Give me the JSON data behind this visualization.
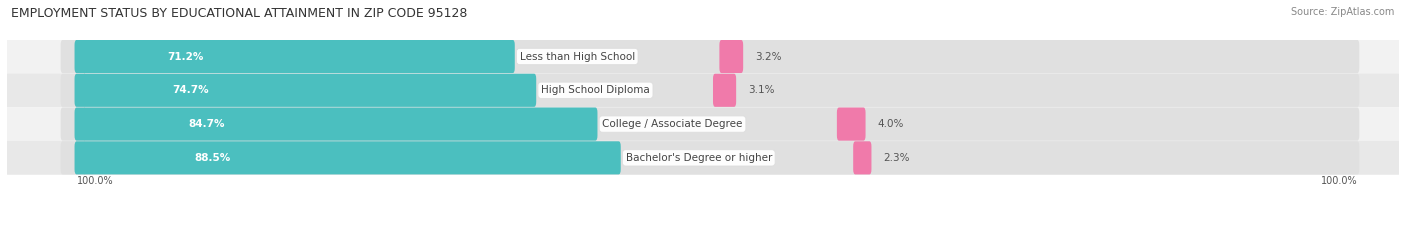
{
  "title": "EMPLOYMENT STATUS BY EDUCATIONAL ATTAINMENT IN ZIP CODE 95128",
  "source": "Source: ZipAtlas.com",
  "categories": [
    "Less than High School",
    "High School Diploma",
    "College / Associate Degree",
    "Bachelor's Degree or higher"
  ],
  "in_labor_force": [
    71.2,
    74.7,
    84.7,
    88.5
  ],
  "unemployed": [
    3.2,
    3.1,
    4.0,
    2.3
  ],
  "labor_force_color": "#4bbfbf",
  "unemployed_color": "#f07aaa",
  "row_bg_light": "#f2f2f2",
  "row_bg_dark": "#e8e8e8",
  "bar_bg_color": "#e0e0e0",
  "x_left_label": "100.0%",
  "x_right_label": "100.0%",
  "title_fontsize": 9,
  "source_fontsize": 7,
  "cat_label_fontsize": 7.5,
  "bar_val_fontsize": 7.5,
  "pct_val_fontsize": 7.5,
  "legend_fontsize": 7.5,
  "axis_label_fontsize": 7
}
